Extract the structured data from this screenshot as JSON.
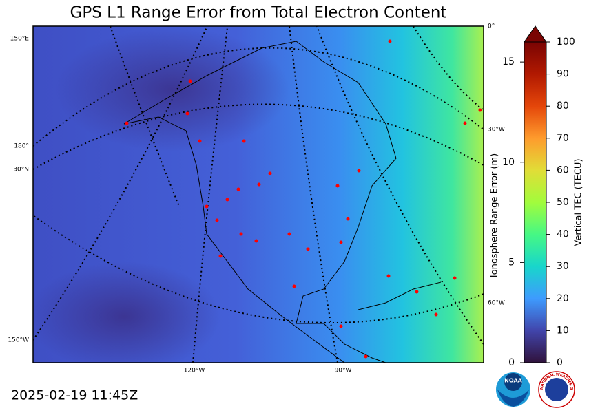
{
  "title": "GPS L1 Range Error from Total Electron Content",
  "map": {
    "left_labels": [
      "150°E",
      "180°",
      "30°N",
      "150°W"
    ],
    "right_labels": [
      "0°",
      "30°W",
      "60°W"
    ],
    "bottom_labels": [
      "120°W",
      "90°W"
    ]
  },
  "colorbar": {
    "label": "Vertical TEC (TECU)",
    "lim": [
      0,
      100
    ],
    "ticks": [
      0,
      10,
      20,
      30,
      40,
      50,
      60,
      70,
      80,
      90,
      100
    ],
    "error_axis": {
      "label": "Ionosphere Range Error (m)",
      "lim": [
        0,
        16
      ],
      "ticks": [
        0,
        5,
        10,
        15
      ]
    }
  },
  "timestamp": "2025-02-19 11:45Z",
  "logos": {
    "noaa": "NOAA",
    "nws": "NATIONAL WEATHER SERVICE"
  }
}
